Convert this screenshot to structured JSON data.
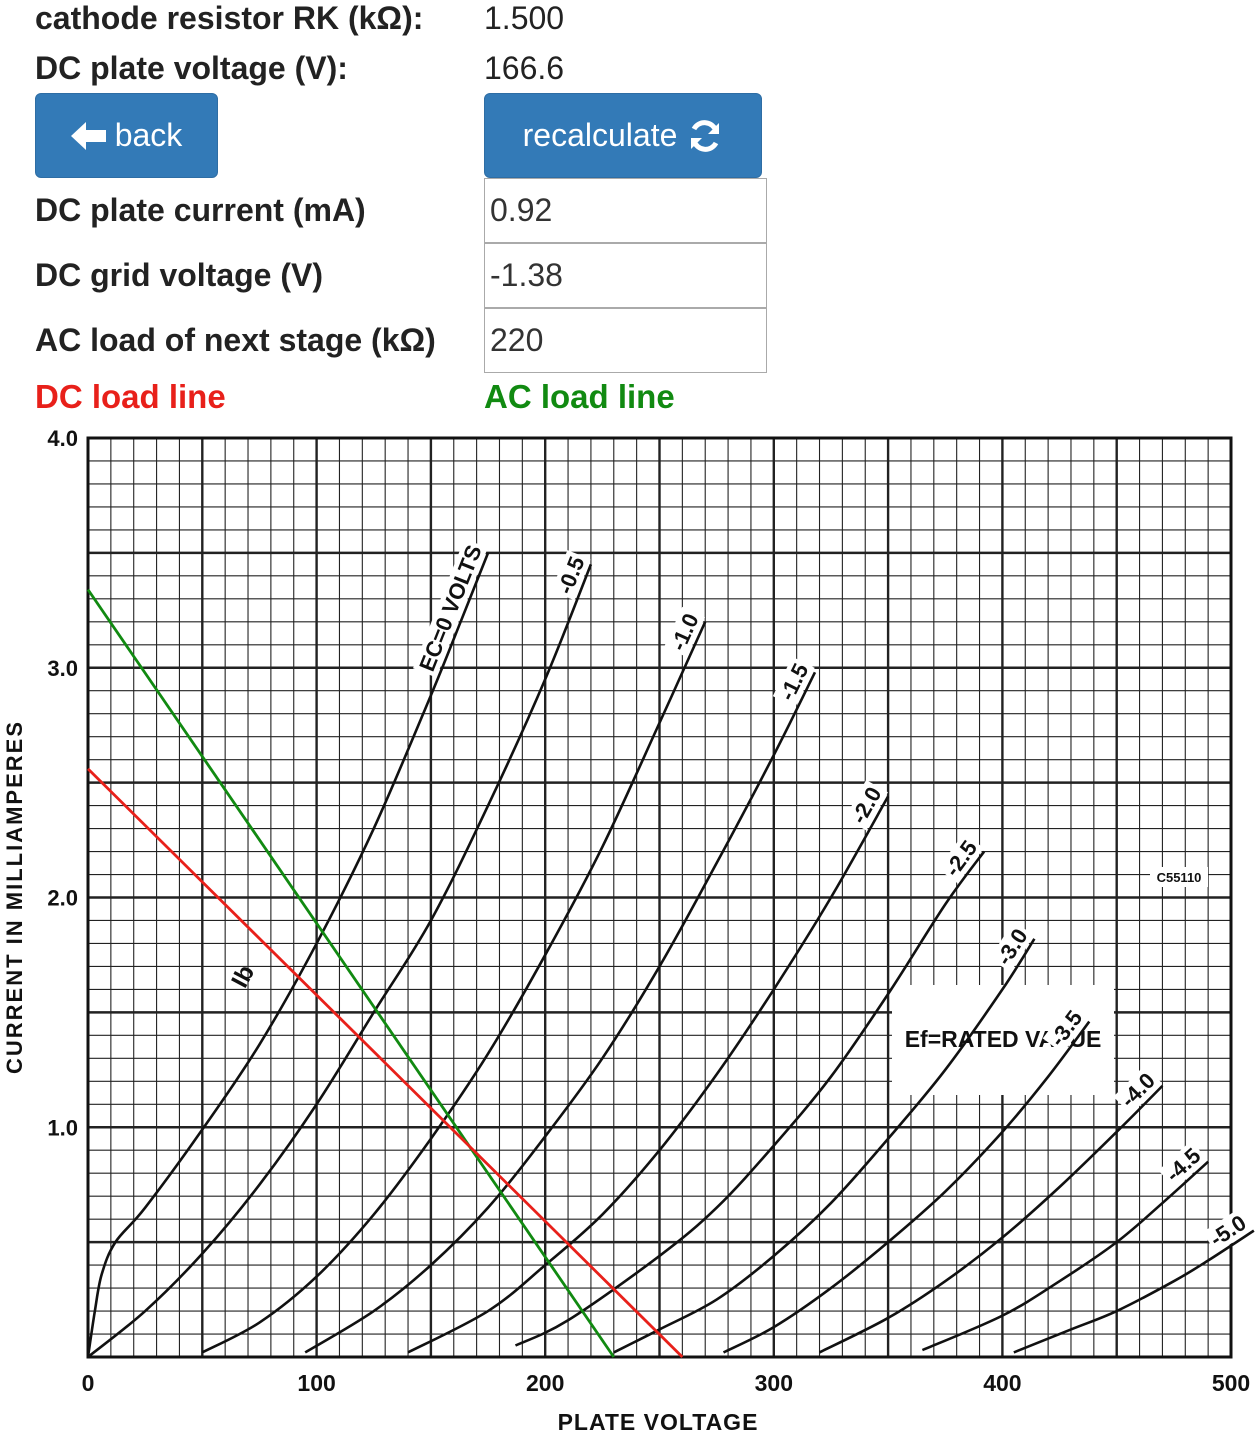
{
  "form": {
    "cathode_resistor_label": "cathode resistor RK (kΩ):",
    "cathode_resistor_value": "1.500",
    "dc_plate_voltage_label": "DC plate voltage (V):",
    "dc_plate_voltage_value": "166.6",
    "back_label": "back",
    "recalculate_label": "recalculate",
    "dc_plate_current_label": "DC plate current (mA)",
    "dc_plate_current_value": "0.92",
    "dc_grid_voltage_label": "DC grid voltage (V)",
    "dc_grid_voltage_value": "-1.38",
    "ac_load_label": "AC load of next stage (kΩ)",
    "ac_load_value": "220"
  },
  "legend": {
    "dc_load_line": "DC load line",
    "ac_load_line": "AC load line",
    "dc_color": "#e8201a",
    "ac_color": "#118a11"
  },
  "icons": {
    "back": "arrow-left-icon",
    "recalculate": "refresh-icon"
  },
  "chart_data": {
    "type": "line",
    "xlabel": "PLATE VOLTAGE",
    "ylabel": "CURRENT IN MILLIAMPERES",
    "xlim": [
      0,
      500
    ],
    "ylim": [
      0,
      4.0
    ],
    "x_ticks": [
      "0",
      "100",
      "200",
      "300",
      "400",
      "500"
    ],
    "y_ticks": [
      "1.0",
      "2.0",
      "3.0",
      "4.0"
    ],
    "grid": true,
    "annotation_ef": "Ef=RATED VALUE",
    "annotation_code": "C55110",
    "annotation_ib": "Ib",
    "series": [
      {
        "name": "EC=0 VOLTS",
        "values": [
          [
            0,
            0
          ],
          [
            3,
            0.2
          ],
          [
            6,
            0.36
          ],
          [
            12,
            0.5
          ],
          [
            25,
            0.65
          ],
          [
            50,
            0.99
          ],
          [
            75,
            1.36
          ],
          [
            100,
            1.8
          ],
          [
            125,
            2.3
          ],
          [
            150,
            2.88
          ],
          [
            163,
            3.2
          ],
          [
            175,
            3.5
          ]
        ]
      },
      {
        "name": "-0.5",
        "values": [
          [
            0,
            0
          ],
          [
            25,
            0.2
          ],
          [
            50,
            0.45
          ],
          [
            75,
            0.75
          ],
          [
            100,
            1.1
          ],
          [
            125,
            1.5
          ],
          [
            150,
            1.9
          ],
          [
            175,
            2.4
          ],
          [
            200,
            2.95
          ],
          [
            220,
            3.45
          ]
        ]
      },
      {
        "name": "-1.0",
        "values": [
          [
            50,
            0.02
          ],
          [
            75,
            0.15
          ],
          [
            100,
            0.35
          ],
          [
            125,
            0.62
          ],
          [
            150,
            0.95
          ],
          [
            175,
            1.32
          ],
          [
            200,
            1.75
          ],
          [
            225,
            2.22
          ],
          [
            250,
            2.76
          ],
          [
            270,
            3.2
          ]
        ]
      },
      {
        "name": "-1.5",
        "values": [
          [
            95,
            0.02
          ],
          [
            125,
            0.2
          ],
          [
            150,
            0.4
          ],
          [
            175,
            0.65
          ],
          [
            200,
            0.96
          ],
          [
            225,
            1.3
          ],
          [
            250,
            1.7
          ],
          [
            275,
            2.15
          ],
          [
            300,
            2.62
          ],
          [
            318,
            2.98
          ]
        ]
      },
      {
        "name": "-2.0",
        "values": [
          [
            140,
            0.02
          ],
          [
            175,
            0.2
          ],
          [
            200,
            0.4
          ],
          [
            225,
            0.62
          ],
          [
            250,
            0.9
          ],
          [
            275,
            1.23
          ],
          [
            300,
            1.6
          ],
          [
            325,
            2.0
          ],
          [
            350,
            2.44
          ]
        ]
      },
      {
        "name": "-2.5",
        "values": [
          [
            187,
            0.05
          ],
          [
            210,
            0.16
          ],
          [
            250,
            0.44
          ],
          [
            275,
            0.65
          ],
          [
            300,
            0.92
          ],
          [
            325,
            1.22
          ],
          [
            350,
            1.58
          ],
          [
            375,
            1.97
          ],
          [
            392,
            2.2
          ]
        ]
      },
      {
        "name": "-3.0",
        "values": [
          [
            230,
            0.02
          ],
          [
            250,
            0.12
          ],
          [
            275,
            0.25
          ],
          [
            300,
            0.44
          ],
          [
            325,
            0.67
          ],
          [
            350,
            0.95
          ],
          [
            375,
            1.25
          ],
          [
            400,
            1.6
          ],
          [
            414,
            1.82
          ]
        ]
      },
      {
        "name": "-3.5",
        "values": [
          [
            278,
            0.02
          ],
          [
            300,
            0.13
          ],
          [
            325,
            0.3
          ],
          [
            350,
            0.5
          ],
          [
            375,
            0.72
          ],
          [
            400,
            0.98
          ],
          [
            420,
            1.22
          ],
          [
            438,
            1.46
          ]
        ]
      },
      {
        "name": "-4.0",
        "values": [
          [
            320,
            0.02
          ],
          [
            350,
            0.17
          ],
          [
            375,
            0.33
          ],
          [
            400,
            0.52
          ],
          [
            425,
            0.74
          ],
          [
            450,
            0.98
          ],
          [
            470,
            1.18
          ]
        ]
      },
      {
        "name": "-4.5",
        "values": [
          [
            365,
            0.03
          ],
          [
            400,
            0.18
          ],
          [
            425,
            0.33
          ],
          [
            450,
            0.5
          ],
          [
            470,
            0.67
          ],
          [
            490,
            0.85
          ]
        ]
      },
      {
        "name": "-5.0",
        "values": [
          [
            405,
            0.02
          ],
          [
            430,
            0.12
          ],
          [
            450,
            0.2
          ],
          [
            475,
            0.33
          ],
          [
            490,
            0.42
          ],
          [
            510,
            0.55
          ]
        ]
      }
    ],
    "dc_load_line": [
      [
        0,
        2.56
      ],
      [
        260,
        0
      ]
    ],
    "ac_load_line": [
      [
        0,
        3.34
      ],
      [
        230,
        0
      ]
    ]
  }
}
